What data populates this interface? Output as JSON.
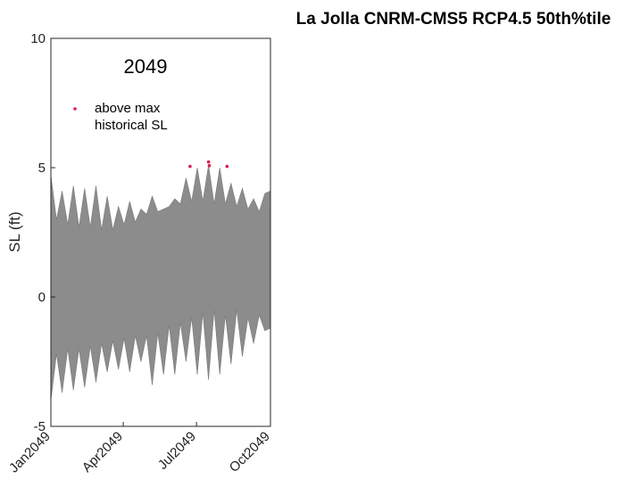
{
  "chart_data": {
    "type": "area",
    "title": "La Jolla CNRM-CMS5 RCP4.5 50th%tile",
    "year_annotation": "2049",
    "xlabel": "",
    "ylabel": "SL (ft)",
    "xlim": [
      "2049-01-01",
      "2049-10-01"
    ],
    "ylim": [
      -5,
      10
    ],
    "x_ticks": [
      "2049-01-01",
      "2049-04-01",
      "2049-07-01",
      "2049-10-01"
    ],
    "x_tick_labels": [
      "Jan2049",
      "Apr2049",
      "Jul2049",
      "Oct2049"
    ],
    "y_ticks": [
      -5,
      0,
      5,
      10
    ],
    "y_tick_labels": [
      "-5",
      "0",
      "5",
      "10"
    ],
    "grid": false,
    "legend": {
      "placement": "top-left",
      "entries": [
        {
          "label": "above max historical SL",
          "label_lines": [
            "above max",
            "historical SL"
          ],
          "color": "#d6204f",
          "marker": "dot"
        }
      ]
    },
    "series": [
      {
        "kind": "envelope",
        "color": "#8c8c8c",
        "x": [
          "2049-01-01",
          "2049-01-08",
          "2049-01-15",
          "2049-01-22",
          "2049-01-29",
          "2049-02-05",
          "2049-02-12",
          "2049-02-19",
          "2049-02-26",
          "2049-03-05",
          "2049-03-12",
          "2049-03-19",
          "2049-03-26",
          "2049-04-02",
          "2049-04-09",
          "2049-04-16",
          "2049-04-23",
          "2049-04-30",
          "2049-05-07",
          "2049-05-14",
          "2049-05-21",
          "2049-05-28",
          "2049-06-04",
          "2049-06-11",
          "2049-06-18",
          "2049-06-25",
          "2049-07-02",
          "2049-07-09",
          "2049-07-16",
          "2049-07-23",
          "2049-07-30",
          "2049-08-06",
          "2049-08-13",
          "2049-08-20",
          "2049-08-27",
          "2049-09-03",
          "2049-09-10",
          "2049-09-17",
          "2049-09-24",
          "2049-10-01"
        ],
        "upper": [
          4.7,
          3.0,
          4.1,
          2.8,
          4.3,
          2.7,
          4.2,
          2.7,
          4.3,
          2.6,
          3.9,
          2.6,
          3.5,
          2.8,
          3.7,
          2.9,
          3.4,
          3.2,
          3.9,
          3.3,
          3.4,
          3.5,
          3.8,
          3.6,
          4.6,
          3.7,
          5.0,
          3.7,
          5.1,
          3.6,
          5.0,
          3.6,
          4.4,
          3.5,
          4.2,
          3.4,
          3.8,
          3.3,
          4.0,
          4.1
        ],
        "lower": [
          -4.0,
          -2.2,
          -3.7,
          -2.0,
          -3.6,
          -2.0,
          -3.5,
          -1.9,
          -3.3,
          -1.8,
          -2.9,
          -1.7,
          -2.8,
          -1.6,
          -2.9,
          -1.5,
          -2.5,
          -1.5,
          -3.4,
          -1.4,
          -3.0,
          -1.1,
          -3.0,
          -1.0,
          -2.5,
          -0.8,
          -3.0,
          -0.6,
          -3.2,
          -0.5,
          -3.0,
          -0.7,
          -2.6,
          -0.5,
          -2.3,
          -0.8,
          -1.8,
          -0.7,
          -1.3,
          -1.2
        ]
      },
      {
        "kind": "points",
        "name": "above max historical SL",
        "color": "#d6204f",
        "points": [
          {
            "x": "2049-06-23",
            "y": 5.05
          },
          {
            "x": "2049-07-16",
            "y": 5.22
          },
          {
            "x": "2049-07-17",
            "y": 5.08
          },
          {
            "x": "2049-08-08",
            "y": 5.05
          }
        ]
      }
    ]
  }
}
